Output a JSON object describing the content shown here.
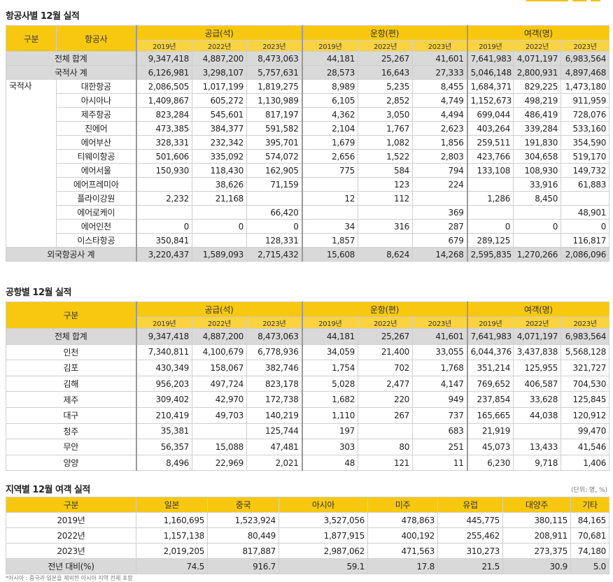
{
  "section1": {
    "title": "항공사별 12월 실적",
    "header": {
      "col_group": "구분",
      "col_airline": "항공사",
      "supply": "공급(석)",
      "flights": "운항(편)",
      "passengers": "여객(명)",
      "years": [
        "2019년",
        "2022년",
        "2023년"
      ]
    },
    "total": {
      "label": "전체 합계",
      "values": [
        "9,347,418",
        "4,887,200",
        "8,473,063",
        "44,181",
        "25,267",
        "41,601",
        "7,641,983",
        "4,071,197",
        "6,983,564"
      ]
    },
    "domestic_total": {
      "label": "국적사 계",
      "values": [
        "6,126,981",
        "3,298,107",
        "5,757,631",
        "28,573",
        "16,643",
        "27,333",
        "5,046,148",
        "2,800,931",
        "4,897,468"
      ]
    },
    "group_label": "국적사",
    "airlines": [
      {
        "name": "대한항공",
        "values": [
          "2,086,505",
          "1,017,199",
          "1,819,275",
          "8,989",
          "5,235",
          "8,455",
          "1,684,371",
          "829,225",
          "1,473,180"
        ]
      },
      {
        "name": "아시아나",
        "values": [
          "1,409,867",
          "605,272",
          "1,130,989",
          "6,105",
          "2,852",
          "4,749",
          "1,152,673",
          "498,219",
          "911,959"
        ]
      },
      {
        "name": "제주항공",
        "values": [
          "823,284",
          "545,601",
          "817,197",
          "4,362",
          "3,050",
          "4,494",
          "699,044",
          "486,419",
          "728,076"
        ]
      },
      {
        "name": "진에어",
        "values": [
          "473,385",
          "384,377",
          "591,582",
          "2,104",
          "1,767",
          "2,623",
          "403,264",
          "339,284",
          "533,160"
        ]
      },
      {
        "name": "에어부산",
        "values": [
          "328,331",
          "232,342",
          "395,701",
          "1,679",
          "1,082",
          "1,856",
          "259,511",
          "191,830",
          "354,590"
        ]
      },
      {
        "name": "티웨이항공",
        "values": [
          "501,606",
          "335,092",
          "574,072",
          "2,656",
          "1,522",
          "2,803",
          "423,766",
          "304,658",
          "519,170"
        ]
      },
      {
        "name": "에어서울",
        "values": [
          "150,930",
          "118,430",
          "162,905",
          "775",
          "584",
          "794",
          "133,108",
          "108,930",
          "149,732"
        ]
      },
      {
        "name": "에어프레미아",
        "values": [
          "",
          "38,626",
          "71,159",
          "",
          "123",
          "224",
          "",
          "33,916",
          "61,883"
        ]
      },
      {
        "name": "플라이강원",
        "values": [
          "2,232",
          "21,168",
          "",
          "12",
          "112",
          "",
          "1,286",
          "8,450",
          ""
        ]
      },
      {
        "name": "에어로케이",
        "values": [
          "",
          "",
          "66,420",
          "",
          "",
          "369",
          "",
          "",
          "48,901"
        ]
      },
      {
        "name": "에어인천",
        "values": [
          "0",
          "0",
          "0",
          "34",
          "316",
          "287",
          "0",
          "0",
          "0"
        ]
      },
      {
        "name": "이스타항공",
        "values": [
          "350,841",
          "",
          "128,331",
          "1,857",
          "",
          "679",
          "289,125",
          "",
          "116,817"
        ]
      }
    ],
    "foreign_total": {
      "label": "외국항공사 계",
      "values": [
        "3,220,437",
        "1,589,093",
        "2,715,432",
        "15,608",
        "8,624",
        "14,268",
        "2,595,835",
        "1,270,266",
        "2,086,096"
      ]
    }
  },
  "section2": {
    "title": "공항별 12월 실적",
    "header": {
      "col_group": "구분",
      "supply": "공급(석)",
      "flights": "운항(편)",
      "passengers": "여객(명)",
      "years": [
        "2019년",
        "2022년",
        "2023년"
      ]
    },
    "total": {
      "label": "전체 합계",
      "values": [
        "9,347,418",
        "4,887,200",
        "8,473,063",
        "44,181",
        "25,267",
        "41,601",
        "7,641,983",
        "4,071,197",
        "6,983,564"
      ]
    },
    "airports": [
      {
        "name": "인천",
        "values": [
          "7,340,811",
          "4,100,679",
          "6,778,936",
          "34,059",
          "21,400",
          "33,055",
          "6,044,376",
          "3,437,838",
          "5,568,128"
        ]
      },
      {
        "name": "김포",
        "values": [
          "430,349",
          "158,067",
          "382,746",
          "1,754",
          "702",
          "1,768",
          "351,214",
          "125,955",
          "321,727"
        ]
      },
      {
        "name": "김해",
        "values": [
          "956,203",
          "497,724",
          "823,178",
          "5,028",
          "2,477",
          "4,147",
          "769,652",
          "406,587",
          "704,530"
        ]
      },
      {
        "name": "제주",
        "values": [
          "309,402",
          "42,970",
          "172,738",
          "1,682",
          "220",
          "949",
          "237,854",
          "33,628",
          "125,845"
        ]
      },
      {
        "name": "대구",
        "values": [
          "210,419",
          "49,703",
          "140,219",
          "1,110",
          "267",
          "737",
          "165,665",
          "44,038",
          "120,912"
        ]
      },
      {
        "name": "청주",
        "values": [
          "35,381",
          "",
          "125,744",
          "197",
          "",
          "683",
          "21,919",
          "",
          "99,470"
        ]
      },
      {
        "name": "무안",
        "values": [
          "56,357",
          "15,088",
          "47,481",
          "303",
          "80",
          "251",
          "45,073",
          "13,433",
          "41,546"
        ]
      },
      {
        "name": "양양",
        "values": [
          "8,496",
          "22,969",
          "2,021",
          "48",
          "121",
          "11",
          "6,230",
          "9,718",
          "1,406"
        ]
      }
    ]
  },
  "section3": {
    "title": "지역별 12월 여객 실적",
    "unit": "(단위: 명, %)",
    "header": [
      "구분",
      "일본",
      "중국",
      "아시아",
      "미주",
      "유럽",
      "대양주",
      "기타"
    ],
    "rows": [
      {
        "label": "2019년",
        "values": [
          "1,160,695",
          "1,523,924",
          "3,527,056",
          "478,863",
          "445,775",
          "380,115",
          "84,165"
        ]
      },
      {
        "label": "2022년",
        "values": [
          "1,157,138",
          "80,449",
          "1,877,915",
          "400,192",
          "255,462",
          "208,911",
          "70,681"
        ]
      },
      {
        "label": "2023년",
        "values": [
          "2,019,205",
          "817,887",
          "2,987,062",
          "471,563",
          "310,273",
          "273,375",
          "74,180"
        ]
      }
    ],
    "yoy": {
      "label": "전년 대비(%)",
      "values": [
        "74.5",
        "916.7",
        "59.1",
        "17.8",
        "21.5",
        "30.9",
        "5.0"
      ]
    }
  },
  "footnote": "*아시아 : 중국과 일본을 제외한 아시아 지역 전체 포함",
  "colors": {
    "header_yellow": "#f7c80f",
    "total_gray": "#d9d9d9",
    "corner_accent": "#f2c200"
  }
}
